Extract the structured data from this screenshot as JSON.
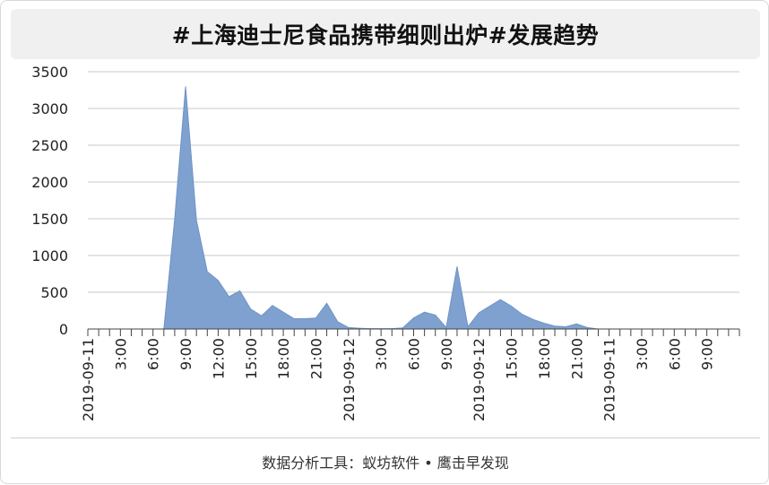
{
  "title": "#上海迪士尼食品携带细则出炉#发展趋势",
  "footer": "数据分析工具：蚁坊软件 • 鹰击早发现",
  "chart_data": {
    "type": "area",
    "title": "#上海迪士尼食品携带细则出炉#发展趋势",
    "xlabel": "",
    "ylabel": "",
    "ylim": [
      0,
      3500
    ],
    "yticks": [
      0,
      500,
      1000,
      1500,
      2000,
      2500,
      3000,
      3500
    ],
    "grid": true,
    "x_tick_labels": [
      "2019-09-11",
      "3:00",
      "6:00",
      "9:00",
      "12:00",
      "15:00",
      "18:00",
      "21:00",
      "2019-09-12",
      "3:00",
      "6:00",
      "9:00",
      "2019-09-12",
      "15:00",
      "18:00",
      "21:00",
      "2019-09-11",
      "3:00",
      "6:00",
      "9:00"
    ],
    "color": "#7ea1d0",
    "values": [
      0,
      0,
      0,
      0,
      0,
      0,
      0,
      0,
      1500,
      3300,
      1480,
      780,
      660,
      440,
      520,
      270,
      180,
      320,
      230,
      140,
      140,
      150,
      350,
      100,
      20,
      10,
      5,
      5,
      5,
      15,
      150,
      230,
      190,
      20,
      850,
      30,
      220,
      310,
      400,
      310,
      200,
      130,
      80,
      40,
      30,
      70,
      20,
      0,
      0,
      0,
      0,
      0,
      0,
      0,
      0,
      0,
      0,
      0,
      0,
      0,
      0
    ]
  }
}
